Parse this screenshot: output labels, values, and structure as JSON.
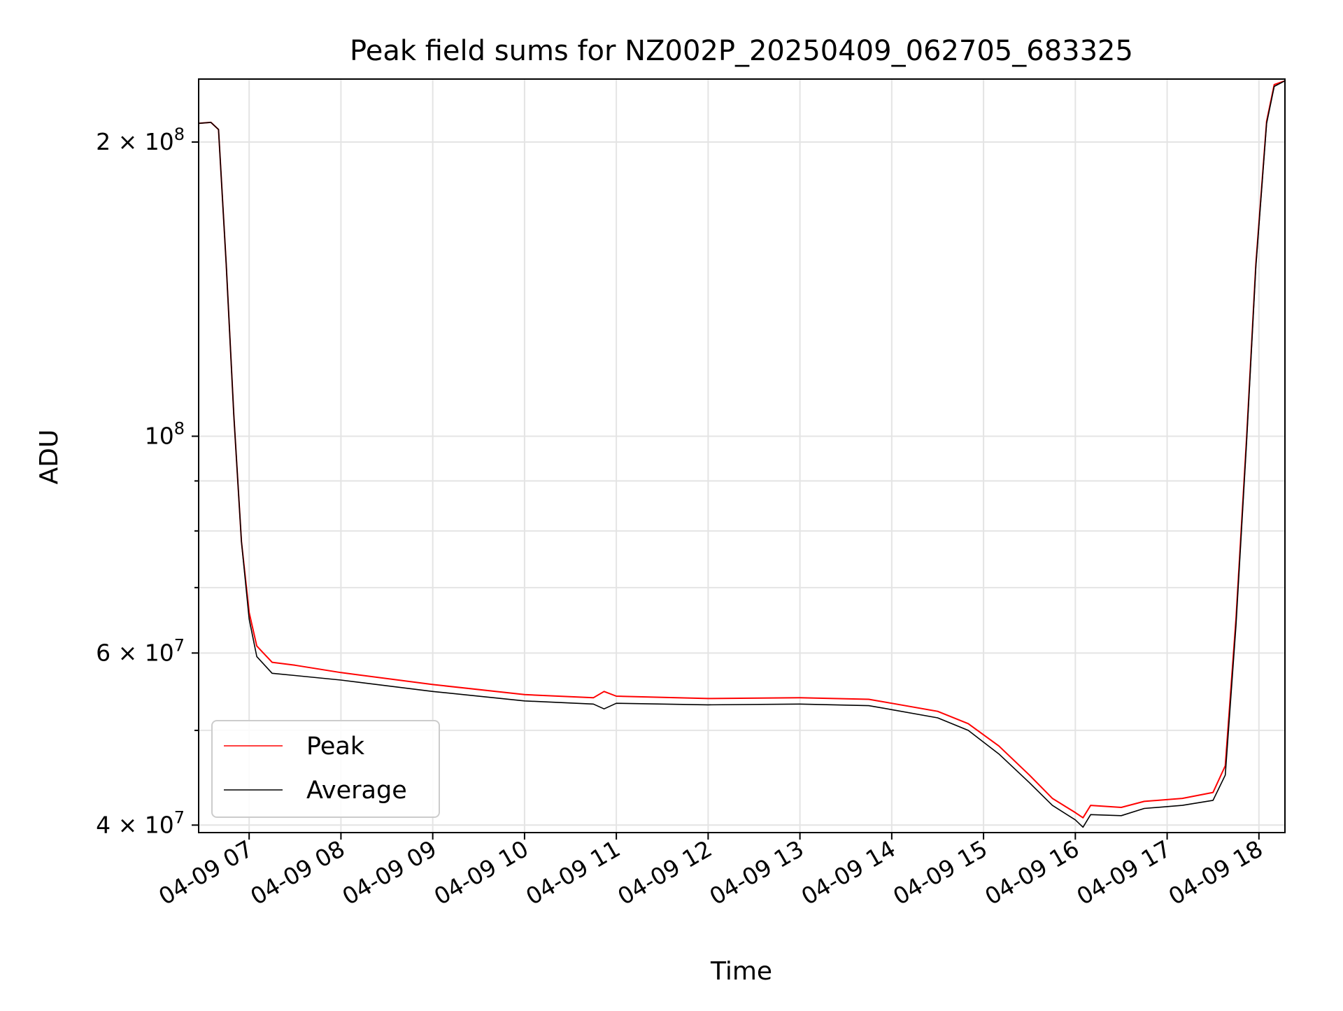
{
  "chart_data": {
    "type": "line",
    "title": "Peak field sums for NZ002P_20250409_062705_683325",
    "xlabel": "Time",
    "ylabel": "ADU",
    "yscale": "log",
    "grid": true,
    "legend_position": "lower-left",
    "xlim": [
      "2025-04-09 06:27",
      "2025-04-09 18:17"
    ],
    "ylim": [
      39300000,
      232000000
    ],
    "x_ticks": [
      "2025-04-09 07:00",
      "2025-04-09 08:00",
      "2025-04-09 09:00",
      "2025-04-09 10:00",
      "2025-04-09 11:00",
      "2025-04-09 12:00",
      "2025-04-09 13:00",
      "2025-04-09 14:00",
      "2025-04-09 15:00",
      "2025-04-09 16:00",
      "2025-04-09 17:00",
      "2025-04-09 18:00"
    ],
    "x_tick_labels": [
      "04-09 07",
      "04-09 08",
      "04-09 09",
      "04-09 10",
      "04-09 11",
      "04-09 12",
      "04-09 13",
      "04-09 14",
      "04-09 15",
      "04-09 16",
      "04-09 17",
      "04-09 18"
    ],
    "y_major_ticks": [
      {
        "value": 40000000,
        "base": "4 × 10",
        "exp": "7"
      },
      {
        "value": 60000000,
        "base": "6 × 10",
        "exp": "7"
      },
      {
        "value": 100000000,
        "base": "10",
        "exp": "8"
      },
      {
        "value": 200000000,
        "base": "2 × 10",
        "exp": "8"
      }
    ],
    "y_minor_ticks": [
      50000000,
      70000000,
      80000000,
      90000000
    ],
    "series": [
      {
        "name": "Peak",
        "color": "#ff0000",
        "points": [
          [
            "2025-04-09 06:27",
            209000000
          ],
          [
            "2025-04-09 06:35",
            209500000
          ],
          [
            "2025-04-09 06:40",
            206000000
          ],
          [
            "2025-04-09 06:45",
            150000000
          ],
          [
            "2025-04-09 06:50",
            105000000
          ],
          [
            "2025-04-09 06:55",
            78000000
          ],
          [
            "2025-04-09 07:00",
            66000000
          ],
          [
            "2025-04-09 07:05",
            61000000
          ],
          [
            "2025-04-09 07:15",
            58700000
          ],
          [
            "2025-04-09 07:30",
            58300000
          ],
          [
            "2025-04-09 08:00",
            57300000
          ],
          [
            "2025-04-09 09:00",
            55700000
          ],
          [
            "2025-04-09 10:00",
            54400000
          ],
          [
            "2025-04-09 10:45",
            54000000
          ],
          [
            "2025-04-09 10:52",
            54800000
          ],
          [
            "2025-04-09 11:00",
            54200000
          ],
          [
            "2025-04-09 12:00",
            53900000
          ],
          [
            "2025-04-09 13:00",
            54000000
          ],
          [
            "2025-04-09 13:45",
            53800000
          ],
          [
            "2025-04-09 14:00",
            53300000
          ],
          [
            "2025-04-09 14:30",
            52300000
          ],
          [
            "2025-04-09 14:50",
            50800000
          ],
          [
            "2025-04-09 15:10",
            48200000
          ],
          [
            "2025-04-09 15:30",
            45000000
          ],
          [
            "2025-04-09 15:45",
            42600000
          ],
          [
            "2025-04-09 16:00",
            41200000
          ],
          [
            "2025-04-09 16:05",
            40700000
          ],
          [
            "2025-04-09 16:10",
            41900000
          ],
          [
            "2025-04-09 16:30",
            41700000
          ],
          [
            "2025-04-09 16:45",
            42300000
          ],
          [
            "2025-04-09 17:10",
            42600000
          ],
          [
            "2025-04-09 17:30",
            43200000
          ],
          [
            "2025-04-09 17:38",
            46000000
          ],
          [
            "2025-04-09 17:45",
            65000000
          ],
          [
            "2025-04-09 17:52",
            100000000
          ],
          [
            "2025-04-09 17:58",
            150000000
          ],
          [
            "2025-04-09 18:05",
            210000000
          ],
          [
            "2025-04-09 18:10",
            229000000
          ],
          [
            "2025-04-09 18:17",
            231000000
          ]
        ]
      },
      {
        "name": "Average",
        "color": "#000000",
        "points": [
          [
            "2025-04-09 06:27",
            209000000
          ],
          [
            "2025-04-09 06:35",
            209500000
          ],
          [
            "2025-04-09 06:40",
            206000000
          ],
          [
            "2025-04-09 06:45",
            150000000
          ],
          [
            "2025-04-09 06:50",
            105000000
          ],
          [
            "2025-04-09 06:55",
            78000000
          ],
          [
            "2025-04-09 07:00",
            65000000
          ],
          [
            "2025-04-09 07:05",
            59500000
          ],
          [
            "2025-04-09 07:15",
            57200000
          ],
          [
            "2025-04-09 07:30",
            56900000
          ],
          [
            "2025-04-09 08:00",
            56300000
          ],
          [
            "2025-04-09 09:00",
            54800000
          ],
          [
            "2025-04-09 10:00",
            53600000
          ],
          [
            "2025-04-09 10:45",
            53200000
          ],
          [
            "2025-04-09 10:52",
            52600000
          ],
          [
            "2025-04-09 11:00",
            53300000
          ],
          [
            "2025-04-09 12:00",
            53100000
          ],
          [
            "2025-04-09 13:00",
            53200000
          ],
          [
            "2025-04-09 13:45",
            53000000
          ],
          [
            "2025-04-09 14:00",
            52500000
          ],
          [
            "2025-04-09 14:30",
            51500000
          ],
          [
            "2025-04-09 14:50",
            50000000
          ],
          [
            "2025-04-09 15:10",
            47300000
          ],
          [
            "2025-04-09 15:30",
            44200000
          ],
          [
            "2025-04-09 15:45",
            41900000
          ],
          [
            "2025-04-09 16:00",
            40500000
          ],
          [
            "2025-04-09 16:05",
            39800000
          ],
          [
            "2025-04-09 16:10",
            41000000
          ],
          [
            "2025-04-09 16:30",
            40900000
          ],
          [
            "2025-04-09 16:45",
            41600000
          ],
          [
            "2025-04-09 17:10",
            41900000
          ],
          [
            "2025-04-09 17:30",
            42400000
          ],
          [
            "2025-04-09 17:38",
            45000000
          ],
          [
            "2025-04-09 17:45",
            64000000
          ],
          [
            "2025-04-09 17:52",
            99000000
          ],
          [
            "2025-04-09 17:58",
            149000000
          ],
          [
            "2025-04-09 18:05",
            209000000
          ],
          [
            "2025-04-09 18:10",
            228000000
          ],
          [
            "2025-04-09 18:17",
            231000000
          ]
        ]
      }
    ]
  }
}
